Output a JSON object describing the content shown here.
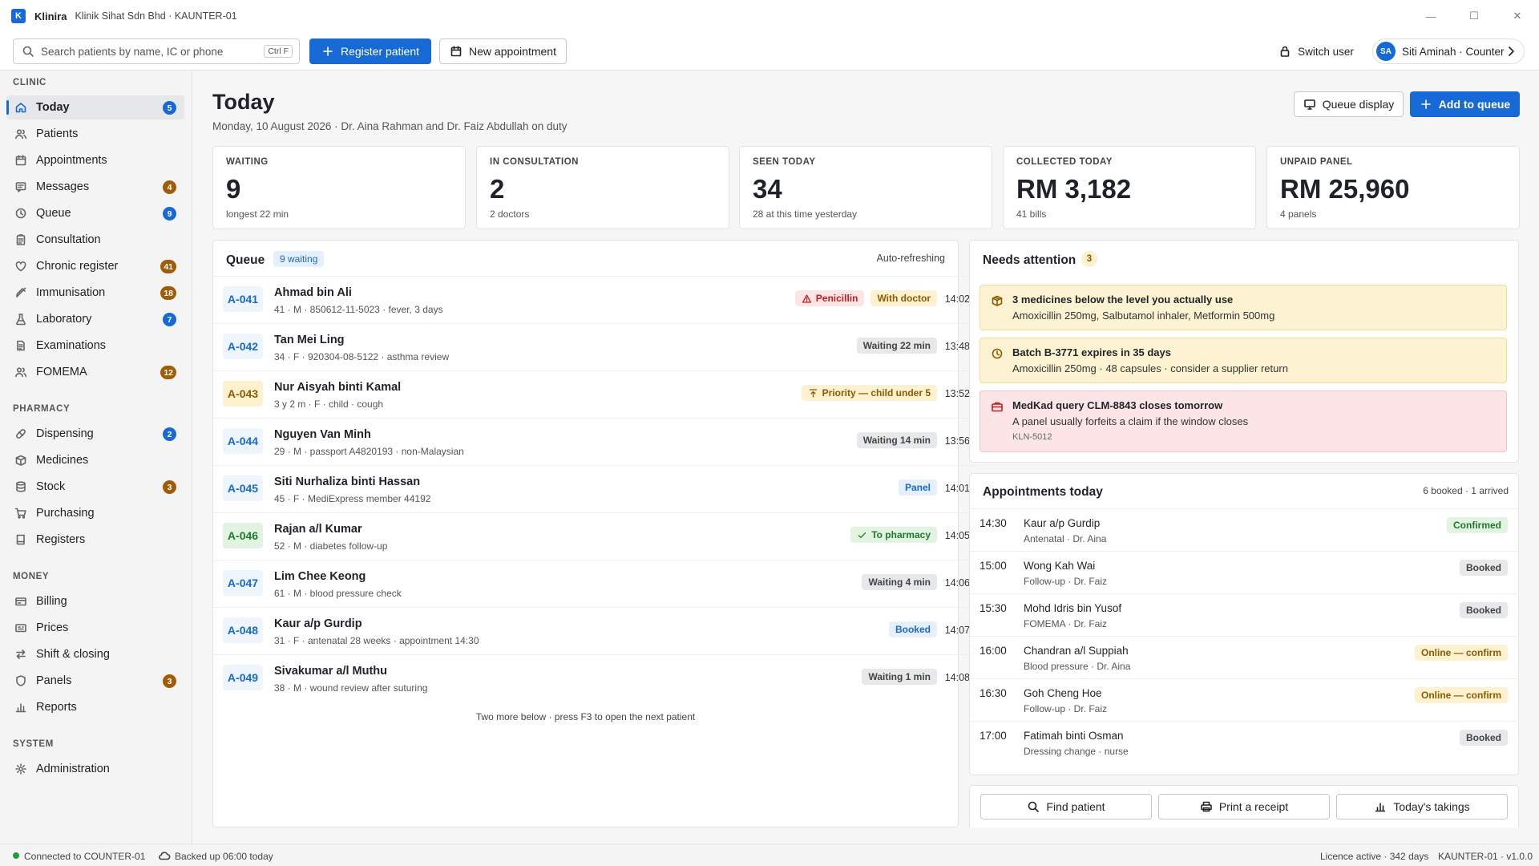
{
  "app": {
    "name": "Klinira",
    "logo_letter": "K",
    "subtitle": "Klinik Sihat Sdn Bhd · KAUNTER-01"
  },
  "toolbar": {
    "search_placeholder": "Search patients by name, IC or phone",
    "search_shortcut": "Ctrl F",
    "register_label": "Register patient",
    "new_appointment_label": "New appointment",
    "switch_user_label": "Switch user",
    "user_initials": "SA",
    "user_label": "Siti Aminah · Counter"
  },
  "sidebar": {
    "sections": [
      {
        "title": "CLINIC",
        "items": [
          {
            "label": "Today",
            "count": "5",
            "icon": "home-icon",
            "active": true
          },
          {
            "label": "Patients",
            "icon": "users-icon"
          },
          {
            "label": "Appointments",
            "icon": "calendar-icon"
          },
          {
            "label": "Messages",
            "count": "4",
            "icon": "message-icon"
          },
          {
            "label": "Queue",
            "count": "9",
            "icon": "clock-icon"
          },
          {
            "label": "Consultation",
            "icon": "clipboard-icon"
          },
          {
            "label": "Chronic register",
            "count": "41",
            "icon": "heart-icon"
          },
          {
            "label": "Immunisation",
            "count": "18",
            "icon": "syringe-icon"
          },
          {
            "label": "Laboratory",
            "count": "7",
            "icon": "flask-icon"
          },
          {
            "label": "Examinations",
            "icon": "document-icon"
          },
          {
            "label": "FOMEMA",
            "count": "12",
            "icon": "users-icon"
          }
        ]
      },
      {
        "title": "PHARMACY",
        "items": [
          {
            "label": "Dispensing",
            "count": "2",
            "icon": "pill-icon"
          },
          {
            "label": "Medicines",
            "icon": "box-icon"
          },
          {
            "label": "Stock",
            "count": "3",
            "icon": "database-icon"
          },
          {
            "label": "Purchasing",
            "icon": "cart-icon"
          },
          {
            "label": "Registers",
            "icon": "book-icon"
          }
        ]
      },
      {
        "title": "MONEY",
        "items": [
          {
            "label": "Billing",
            "icon": "card-icon"
          },
          {
            "label": "Prices",
            "icon": "tag-icon"
          },
          {
            "label": "Shift & closing",
            "icon": "swap-icon"
          },
          {
            "label": "Panels",
            "count": "3",
            "icon": "shield-icon"
          },
          {
            "label": "Reports",
            "icon": "bar-chart-icon"
          }
        ]
      },
      {
        "title": "SYSTEM",
        "items": [
          {
            "label": "Administration",
            "icon": "gear-icon"
          }
        ]
      }
    ]
  },
  "page": {
    "title": "Today",
    "subtitle": "Monday, 10 August 2026 · Dr. Aina Rahman and Dr. Faiz Abdullah on duty",
    "queue_display_label": "Queue display",
    "add_to_queue_label": "Add to queue"
  },
  "stats": [
    {
      "label": "WAITING",
      "value": "9",
      "sub": "longest 22 min"
    },
    {
      "label": "IN CONSULTATION",
      "value": "2",
      "sub": "2 doctors"
    },
    {
      "label": "SEEN TODAY",
      "value": "34",
      "sub": "28 at this time yesterday"
    },
    {
      "label": "COLLECTED TODAY",
      "value": "RM 3,182",
      "sub": "41 bills"
    },
    {
      "label": "UNPAID PANEL",
      "value": "RM 25,960",
      "sub": "4 panels"
    }
  ],
  "queue": {
    "title": "Queue",
    "badge": "9 waiting",
    "status": "Auto-refreshing",
    "footer": "Two more below · press F3 to open the next patient",
    "rows": [
      {
        "ticket": "A-041",
        "name": "Ahmad bin Ali",
        "meta": "41 · M · 850612-11-5023 · fever, 3 days",
        "tags": [
          {
            "text": "Penicillin",
            "style": "red",
            "icon": "warning-icon"
          },
          {
            "text": "With doctor",
            "style": "amber"
          }
        ],
        "time": "14:02"
      },
      {
        "ticket": "A-042",
        "name": "Tan Mei Ling",
        "meta": "34 · F · 920304-08-5122 · asthma review",
        "tags": [
          {
            "text": "Waiting 22 min",
            "style": "grey"
          }
        ],
        "time": "13:48"
      },
      {
        "ticket": "A-043",
        "ticket_style": "amber",
        "name": "Nur Aisyah binti Kamal",
        "meta": "3 y 2 m · F · child · cough",
        "tags": [
          {
            "text": "Priority — child under 5",
            "style": "amber",
            "icon": "arrow-up-icon"
          }
        ],
        "time": "13:52"
      },
      {
        "ticket": "A-044",
        "name": "Nguyen Van Minh",
        "meta": "29 · M · passport A4820193 · non-Malaysian",
        "tags": [
          {
            "text": "Waiting 14 min",
            "style": "grey"
          }
        ],
        "time": "13:56"
      },
      {
        "ticket": "A-045",
        "name": "Siti Nurhaliza binti Hassan",
        "meta": "45 · F · MediExpress member 44192",
        "tags": [
          {
            "text": "Panel",
            "style": "blue"
          }
        ],
        "time": "14:01"
      },
      {
        "ticket": "A-046",
        "ticket_style": "green",
        "name": "Rajan a/l Kumar",
        "meta": "52 · M · diabetes follow-up",
        "tags": [
          {
            "text": "To pharmacy",
            "style": "green",
            "icon": "check-icon"
          }
        ],
        "time": "14:05"
      },
      {
        "ticket": "A-047",
        "name": "Lim Chee Keong",
        "meta": "61 · M · blood pressure check",
        "tags": [
          {
            "text": "Waiting 4 min",
            "style": "grey"
          }
        ],
        "time": "14:06"
      },
      {
        "ticket": "A-048",
        "name": "Kaur a/p Gurdip",
        "meta": "31 · F · antenatal 28 weeks · appointment 14:30",
        "tags": [
          {
            "text": "Booked",
            "style": "blue"
          }
        ],
        "time": "14:07"
      },
      {
        "ticket": "A-049",
        "name": "Sivakumar a/l Muthu",
        "meta": "38 · M · wound review after suturing",
        "tags": [
          {
            "text": "Waiting 1 min",
            "style": "grey"
          }
        ],
        "time": "14:08"
      }
    ]
  },
  "attention": {
    "title": "Needs attention",
    "count": "3",
    "items": [
      {
        "style": "amber",
        "icon": "package-icon",
        "title": "3 medicines below the level you actually use",
        "desc": "Amoxicillin 250mg, Salbutamol inhaler, Metformin 500mg"
      },
      {
        "style": "amber",
        "icon": "clock-icon",
        "title": "Batch B-3771 expires in 35 days",
        "desc": "Amoxicillin 250mg · 48 capsules · consider a supplier return"
      },
      {
        "style": "red",
        "icon": "briefcase-icon",
        "title": "MedKad query CLM-8843 closes tomorrow",
        "desc": "A panel usually forfeits a claim if the window closes",
        "ref": "KLN-5012"
      }
    ]
  },
  "appointments": {
    "title": "Appointments today",
    "summary": "6 booked · 1 arrived",
    "rows": [
      {
        "time": "14:30",
        "name": "Kaur a/p Gurdip",
        "meta": "Antenatal · Dr. Aina",
        "status": "Confirmed",
        "style": "green"
      },
      {
        "time": "15:00",
        "name": "Wong Kah Wai",
        "meta": "Follow-up · Dr. Faiz",
        "status": "Booked",
        "style": "grey"
      },
      {
        "time": "15:30",
        "name": "Mohd Idris bin Yusof",
        "meta": "FOMEMA · Dr. Faiz",
        "status": "Booked",
        "style": "grey"
      },
      {
        "time": "16:00",
        "name": "Chandran a/l Suppiah",
        "meta": "Blood pressure · Dr. Aina",
        "status": "Online — confirm",
        "style": "amber"
      },
      {
        "time": "16:30",
        "name": "Goh Cheng Hoe",
        "meta": "Follow-up · Dr. Faiz",
        "status": "Online — confirm",
        "style": "amber"
      },
      {
        "time": "17:00",
        "name": "Fatimah binti Osman",
        "meta": "Dressing change · nurse",
        "status": "Booked",
        "style": "grey"
      }
    ]
  },
  "quick_actions": [
    {
      "label": "Find patient",
      "icon": "search-icon"
    },
    {
      "label": "Print a receipt",
      "icon": "printer-icon"
    },
    {
      "label": "Today's takings",
      "icon": "bar-chart-icon"
    }
  ],
  "statusbar": {
    "connection": "Connected to COUNTER-01",
    "backup": "Backed up 06:00 today",
    "licence": "Licence active · 342 days",
    "version": "KAUNTER-01 · v1.0.0"
  },
  "colors": {
    "accent": "#1769d6",
    "count_brown": "#a15c07",
    "online_green": "#1e9e3a"
  }
}
